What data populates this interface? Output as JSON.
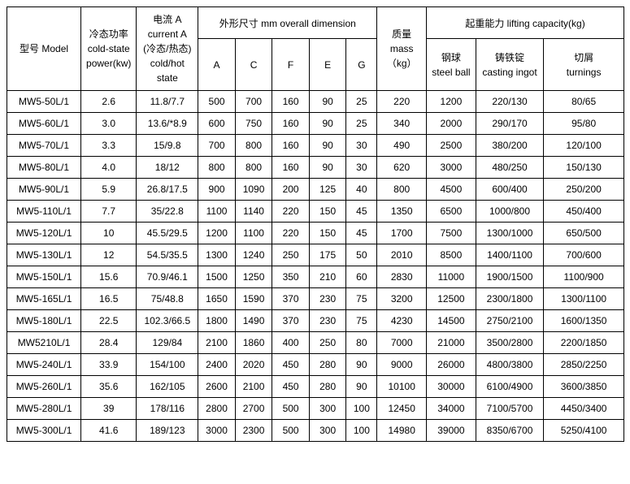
{
  "type": "table",
  "background_color": "#ffffff",
  "border_color": "#000000",
  "text_color": "#000000",
  "font_size_pt": 9,
  "col_widths_pct": [
    12,
    9,
    10,
    6,
    6,
    6,
    6,
    5,
    8,
    8,
    11,
    13
  ],
  "header": {
    "group_dimension": "外形尺寸  mm overall dimension",
    "group_lifting": "起重能力 lifting capacity(kg)",
    "model_cn": "型号 Model",
    "power_cn": "冷态功率",
    "power_en1": "cold-state",
    "power_en2": "power(kw)",
    "current_cn1": "电流 A",
    "current_en1": "current A",
    "current_cn2": "(冷态/热态)",
    "current_en2": "cold/hot state",
    "A": "A",
    "C": "C",
    "F": "F",
    "E": "E",
    "G": "G",
    "mass_cn": "质量",
    "mass_en1": "mass",
    "mass_en2": "（kg）",
    "steel_cn": "钢球",
    "steel_en": "steel ball",
    "casting_cn": "铸铁锭",
    "casting_en": "casting ingot",
    "turnings_cn": "切屑",
    "turnings_en": "turnings"
  },
  "rows": [
    [
      "MW5-50L/1",
      "2.6",
      "11.8/7.7",
      "500",
      "700",
      "160",
      "90",
      "25",
      "220",
      "1200",
      "220/130",
      "80/65"
    ],
    [
      "MW5-60L/1",
      "3.0",
      "13.6/*8.9",
      "600",
      "750",
      "160",
      "90",
      "25",
      "340",
      "2000",
      "290/170",
      "95/80"
    ],
    [
      "MW5-70L/1",
      "3.3",
      "15/9.8",
      "700",
      "800",
      "160",
      "90",
      "30",
      "490",
      "2500",
      "380/200",
      "120/100"
    ],
    [
      "MW5-80L/1",
      "4.0",
      "18/12",
      "800",
      "800",
      "160",
      "90",
      "30",
      "620",
      "3000",
      "480/250",
      "150/130"
    ],
    [
      "MW5-90L/1",
      "5.9",
      "26.8/17.5",
      "900",
      "1090",
      "200",
      "125",
      "40",
      "800",
      "4500",
      "600/400",
      "250/200"
    ],
    [
      "MW5-110L/1",
      "7.7",
      "35/22.8",
      "1100",
      "1140",
      "220",
      "150",
      "45",
      "1350",
      "6500",
      "1000/800",
      "450/400"
    ],
    [
      "MW5-120L/1",
      "10",
      "45.5/29.5",
      "1200",
      "1100",
      "220",
      "150",
      "45",
      "1700",
      "7500",
      "1300/1000",
      "650/500"
    ],
    [
      "MW5-130L/1",
      "12",
      "54.5/35.5",
      "1300",
      "1240",
      "250",
      "175",
      "50",
      "2010",
      "8500",
      "1400/1100",
      "700/600"
    ],
    [
      "MW5-150L/1",
      "15.6",
      "70.9/46.1",
      "1500",
      "1250",
      "350",
      "210",
      "60",
      "2830",
      "11000",
      "1900/1500",
      "1100/900"
    ],
    [
      "MW5-165L/1",
      "16.5",
      "75/48.8",
      "1650",
      "1590",
      "370",
      "230",
      "75",
      "3200",
      "12500",
      "2300/1800",
      "1300/1100"
    ],
    [
      "MW5-180L/1",
      "22.5",
      "102.3/66.5",
      "1800",
      "1490",
      "370",
      "230",
      "75",
      "4230",
      "14500",
      "2750/2100",
      "1600/1350"
    ],
    [
      "MW5210L/1",
      "28.4",
      "129/84",
      "2100",
      "1860",
      "400",
      "250",
      "80",
      "7000",
      "21000",
      "3500/2800",
      "2200/1850"
    ],
    [
      "MW5-240L/1",
      "33.9",
      "154/100",
      "2400",
      "2020",
      "450",
      "280",
      "90",
      "9000",
      "26000",
      "4800/3800",
      "2850/2250"
    ],
    [
      "MW5-260L/1",
      "35.6",
      "162/105",
      "2600",
      "2100",
      "450",
      "280",
      "90",
      "10100",
      "30000",
      "6100/4900",
      "3600/3850"
    ],
    [
      "MW5-280L/1",
      "39",
      "178/116",
      "2800",
      "2700",
      "500",
      "300",
      "100",
      "12450",
      "34000",
      "7100/5700",
      "4450/3400"
    ],
    [
      "MW5-300L/1",
      "41.6",
      "189/123",
      "3000",
      "2300",
      "500",
      "300",
      "100",
      "14980",
      "39000",
      "8350/6700",
      "5250/4100"
    ]
  ]
}
